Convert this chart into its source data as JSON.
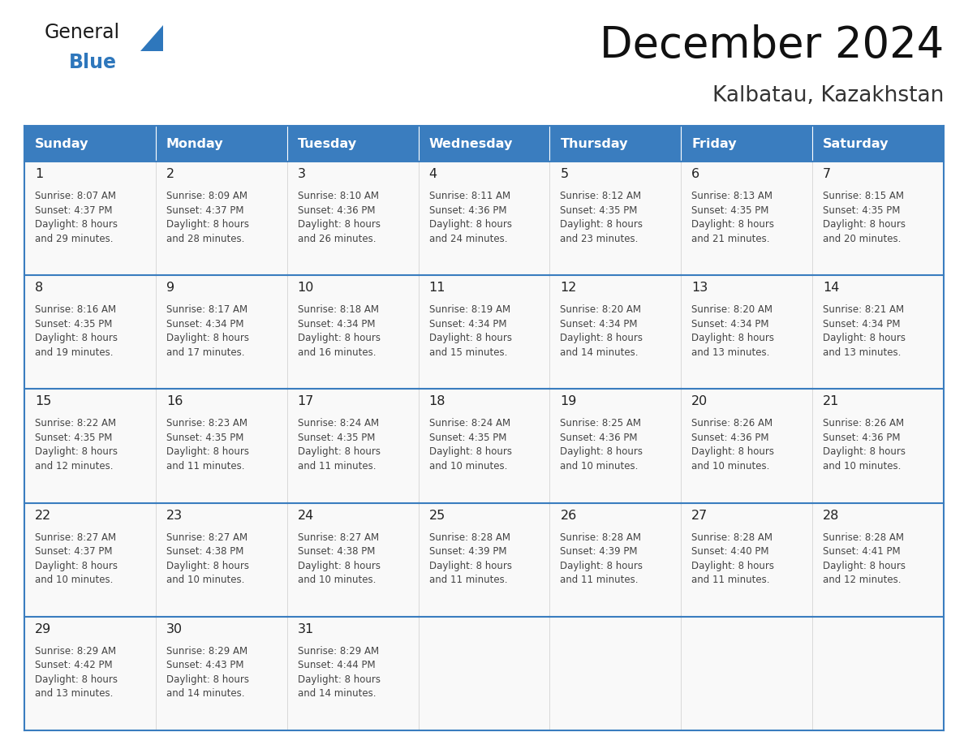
{
  "title": "December 2024",
  "subtitle": "Kalbatau, Kazakhstan",
  "days_of_week": [
    "Sunday",
    "Monday",
    "Tuesday",
    "Wednesday",
    "Thursday",
    "Friday",
    "Saturday"
  ],
  "header_bg": "#3a7dbf",
  "header_text": "#ffffff",
  "cell_bg": "#f9f9f9",
  "border_color": "#3a7dbf",
  "text_color": "#444444",
  "day_num_color": "#222222",
  "calendar_data": [
    [
      {
        "day": 1,
        "sunrise": "8:07 AM",
        "sunset": "4:37 PM",
        "daylight": "8 hours",
        "daylight2": "and 29 minutes."
      },
      {
        "day": 2,
        "sunrise": "8:09 AM",
        "sunset": "4:37 PM",
        "daylight": "8 hours",
        "daylight2": "and 28 minutes."
      },
      {
        "day": 3,
        "sunrise": "8:10 AM",
        "sunset": "4:36 PM",
        "daylight": "8 hours",
        "daylight2": "and 26 minutes."
      },
      {
        "day": 4,
        "sunrise": "8:11 AM",
        "sunset": "4:36 PM",
        "daylight": "8 hours",
        "daylight2": "and 24 minutes."
      },
      {
        "day": 5,
        "sunrise": "8:12 AM",
        "sunset": "4:35 PM",
        "daylight": "8 hours",
        "daylight2": "and 23 minutes."
      },
      {
        "day": 6,
        "sunrise": "8:13 AM",
        "sunset": "4:35 PM",
        "daylight": "8 hours",
        "daylight2": "and 21 minutes."
      },
      {
        "day": 7,
        "sunrise": "8:15 AM",
        "sunset": "4:35 PM",
        "daylight": "8 hours",
        "daylight2": "and 20 minutes."
      }
    ],
    [
      {
        "day": 8,
        "sunrise": "8:16 AM",
        "sunset": "4:35 PM",
        "daylight": "8 hours",
        "daylight2": "and 19 minutes."
      },
      {
        "day": 9,
        "sunrise": "8:17 AM",
        "sunset": "4:34 PM",
        "daylight": "8 hours",
        "daylight2": "and 17 minutes."
      },
      {
        "day": 10,
        "sunrise": "8:18 AM",
        "sunset": "4:34 PM",
        "daylight": "8 hours",
        "daylight2": "and 16 minutes."
      },
      {
        "day": 11,
        "sunrise": "8:19 AM",
        "sunset": "4:34 PM",
        "daylight": "8 hours",
        "daylight2": "and 15 minutes."
      },
      {
        "day": 12,
        "sunrise": "8:20 AM",
        "sunset": "4:34 PM",
        "daylight": "8 hours",
        "daylight2": "and 14 minutes."
      },
      {
        "day": 13,
        "sunrise": "8:20 AM",
        "sunset": "4:34 PM",
        "daylight": "8 hours",
        "daylight2": "and 13 minutes."
      },
      {
        "day": 14,
        "sunrise": "8:21 AM",
        "sunset": "4:34 PM",
        "daylight": "8 hours",
        "daylight2": "and 13 minutes."
      }
    ],
    [
      {
        "day": 15,
        "sunrise": "8:22 AM",
        "sunset": "4:35 PM",
        "daylight": "8 hours",
        "daylight2": "and 12 minutes."
      },
      {
        "day": 16,
        "sunrise": "8:23 AM",
        "sunset": "4:35 PM",
        "daylight": "8 hours",
        "daylight2": "and 11 minutes."
      },
      {
        "day": 17,
        "sunrise": "8:24 AM",
        "sunset": "4:35 PM",
        "daylight": "8 hours",
        "daylight2": "and 11 minutes."
      },
      {
        "day": 18,
        "sunrise": "8:24 AM",
        "sunset": "4:35 PM",
        "daylight": "8 hours",
        "daylight2": "and 10 minutes."
      },
      {
        "day": 19,
        "sunrise": "8:25 AM",
        "sunset": "4:36 PM",
        "daylight": "8 hours",
        "daylight2": "and 10 minutes."
      },
      {
        "day": 20,
        "sunrise": "8:26 AM",
        "sunset": "4:36 PM",
        "daylight": "8 hours",
        "daylight2": "and 10 minutes."
      },
      {
        "day": 21,
        "sunrise": "8:26 AM",
        "sunset": "4:36 PM",
        "daylight": "8 hours",
        "daylight2": "and 10 minutes."
      }
    ],
    [
      {
        "day": 22,
        "sunrise": "8:27 AM",
        "sunset": "4:37 PM",
        "daylight": "8 hours",
        "daylight2": "and 10 minutes."
      },
      {
        "day": 23,
        "sunrise": "8:27 AM",
        "sunset": "4:38 PM",
        "daylight": "8 hours",
        "daylight2": "and 10 minutes."
      },
      {
        "day": 24,
        "sunrise": "8:27 AM",
        "sunset": "4:38 PM",
        "daylight": "8 hours",
        "daylight2": "and 10 minutes."
      },
      {
        "day": 25,
        "sunrise": "8:28 AM",
        "sunset": "4:39 PM",
        "daylight": "8 hours",
        "daylight2": "and 11 minutes."
      },
      {
        "day": 26,
        "sunrise": "8:28 AM",
        "sunset": "4:39 PM",
        "daylight": "8 hours",
        "daylight2": "and 11 minutes."
      },
      {
        "day": 27,
        "sunrise": "8:28 AM",
        "sunset": "4:40 PM",
        "daylight": "8 hours",
        "daylight2": "and 11 minutes."
      },
      {
        "day": 28,
        "sunrise": "8:28 AM",
        "sunset": "4:41 PM",
        "daylight": "8 hours",
        "daylight2": "and 12 minutes."
      }
    ],
    [
      {
        "day": 29,
        "sunrise": "8:29 AM",
        "sunset": "4:42 PM",
        "daylight": "8 hours",
        "daylight2": "and 13 minutes."
      },
      {
        "day": 30,
        "sunrise": "8:29 AM",
        "sunset": "4:43 PM",
        "daylight": "8 hours",
        "daylight2": "and 14 minutes."
      },
      {
        "day": 31,
        "sunrise": "8:29 AM",
        "sunset": "4:44 PM",
        "daylight": "8 hours",
        "daylight2": "and 14 minutes."
      },
      null,
      null,
      null,
      null
    ]
  ],
  "logo_text_general": "General",
  "logo_text_blue": "Blue",
  "logo_blue": "#2e77bc",
  "logo_black": "#1a1a1a",
  "fig_width": 11.88,
  "fig_height": 9.18,
  "dpi": 100
}
